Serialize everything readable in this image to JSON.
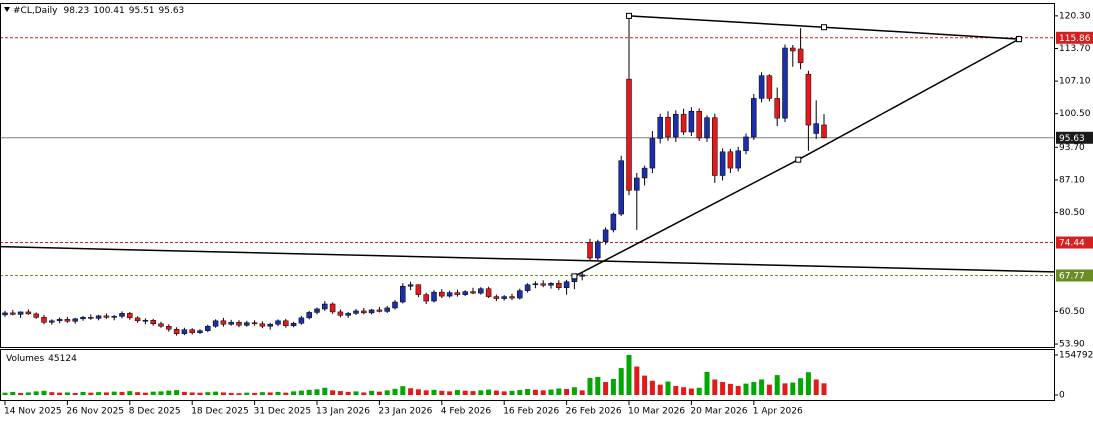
{
  "header": {
    "symbol": "#CL,Daily",
    "open": 98.23,
    "high": 100.41,
    "low": 95.51,
    "close": 95.63
  },
  "chart_data": {
    "type": "candlestick",
    "categories": [
      "14 Nov 2025",
      null,
      null,
      null,
      null,
      null,
      null,
      null,
      "26 Nov 2025",
      null,
      null,
      null,
      null,
      null,
      null,
      null,
      "8 Dec 2025",
      null,
      null,
      null,
      null,
      null,
      null,
      null,
      "18 Dec 2025",
      null,
      null,
      null,
      null,
      null,
      null,
      null,
      "31 Dec 2025",
      null,
      null,
      null,
      null,
      null,
      null,
      null,
      "13 Jan 2026",
      null,
      null,
      null,
      null,
      null,
      null,
      null,
      "23 Jan 2026",
      null,
      null,
      null,
      null,
      null,
      null,
      null,
      "4 Feb 2026",
      null,
      null,
      null,
      null,
      null,
      null,
      null,
      "16 Feb 2026",
      null,
      null,
      null,
      null,
      null,
      null,
      null,
      "26 Feb 2026",
      null,
      null,
      null,
      null,
      null,
      null,
      null,
      "10 Mar 2026",
      null,
      null,
      null,
      null,
      null,
      null,
      null,
      "20 Mar 2026",
      null,
      null,
      null,
      null,
      null,
      null,
      null,
      "1 Apr 2026",
      null,
      null,
      null,
      null,
      null,
      null,
      null,
      null,
      null
    ],
    "ohlc": [
      [
        59.8,
        60.6,
        59.4,
        60.2
      ],
      [
        60.2,
        60.8,
        59.7,
        59.9
      ],
      [
        59.9,
        60.5,
        59.2,
        60.4
      ],
      [
        60.4,
        60.9,
        59.8,
        60.0
      ],
      [
        60.0,
        60.3,
        59.0,
        59.3
      ],
      [
        59.3,
        59.8,
        57.9,
        58.3
      ],
      [
        58.3,
        58.9,
        57.8,
        58.6
      ],
      [
        58.6,
        59.3,
        58.1,
        58.9
      ],
      [
        58.9,
        59.4,
        58.2,
        58.5
      ],
      [
        58.5,
        59.2,
        58.0,
        59.0
      ],
      [
        59.0,
        59.6,
        58.6,
        59.3
      ],
      [
        59.3,
        59.9,
        58.8,
        59.1
      ],
      [
        59.1,
        59.8,
        58.7,
        59.6
      ],
      [
        59.6,
        60.1,
        59.0,
        59.3
      ],
      [
        59.3,
        59.8,
        58.7,
        59.5
      ],
      [
        59.5,
        60.5,
        59.1,
        60.1
      ],
      [
        60.1,
        60.4,
        58.8,
        59.2
      ],
      [
        59.2,
        59.5,
        58.2,
        58.6
      ],
      [
        58.6,
        59.1,
        57.9,
        58.7
      ],
      [
        58.7,
        59.0,
        57.6,
        58.0
      ],
      [
        58.0,
        58.4,
        57.2,
        57.5
      ],
      [
        57.5,
        57.9,
        56.4,
        56.9
      ],
      [
        56.9,
        57.3,
        55.6,
        56.0
      ],
      [
        56.0,
        57.2,
        55.7,
        56.8
      ],
      [
        56.8,
        57.1,
        55.8,
        56.2
      ],
      [
        56.2,
        56.9,
        55.9,
        56.6
      ],
      [
        56.6,
        57.8,
        56.3,
        57.5
      ],
      [
        57.5,
        58.9,
        57.2,
        58.6
      ],
      [
        58.6,
        59.2,
        57.4,
        57.9
      ],
      [
        57.9,
        58.8,
        57.6,
        58.3
      ],
      [
        58.3,
        58.7,
        57.3,
        57.7
      ],
      [
        57.7,
        58.6,
        57.4,
        58.2
      ],
      [
        58.2,
        58.7,
        57.6,
        58.0
      ],
      [
        58.0,
        58.5,
        57.1,
        57.5
      ],
      [
        57.5,
        58.2,
        56.8,
        57.9
      ],
      [
        57.9,
        58.9,
        57.5,
        58.6
      ],
      [
        58.6,
        59.0,
        57.2,
        57.6
      ],
      [
        57.6,
        58.4,
        57.3,
        58.1
      ],
      [
        58.1,
        59.6,
        57.8,
        59.2
      ],
      [
        59.2,
        60.6,
        58.9,
        60.3
      ],
      [
        60.3,
        61.3,
        59.9,
        61.0
      ],
      [
        61.0,
        62.6,
        60.6,
        62.0
      ],
      [
        62.0,
        62.3,
        60.0,
        60.4
      ],
      [
        60.4,
        60.9,
        59.3,
        59.7
      ],
      [
        59.7,
        60.4,
        59.2,
        60.1
      ],
      [
        60.1,
        61.0,
        59.8,
        60.6
      ],
      [
        60.6,
        61.2,
        59.9,
        60.2
      ],
      [
        60.2,
        61.0,
        59.9,
        60.8
      ],
      [
        60.8,
        61.4,
        60.3,
        60.5
      ],
      [
        60.5,
        61.6,
        60.2,
        61.2
      ],
      [
        61.2,
        62.8,
        60.9,
        62.4
      ],
      [
        62.4,
        66.2,
        62.1,
        65.6
      ],
      [
        65.6,
        66.5,
        64.8,
        65.9
      ],
      [
        65.9,
        66.0,
        63.4,
        63.9
      ],
      [
        63.9,
        64.3,
        62.0,
        62.6
      ],
      [
        62.6,
        64.8,
        62.3,
        64.4
      ],
      [
        64.4,
        65.0,
        63.2,
        63.6
      ],
      [
        63.6,
        64.7,
        63.3,
        64.3
      ],
      [
        64.3,
        64.9,
        63.5,
        63.9
      ],
      [
        63.9,
        64.8,
        63.6,
        64.5
      ],
      [
        64.5,
        65.3,
        64.0,
        64.2
      ],
      [
        64.2,
        65.4,
        63.9,
        65.1
      ],
      [
        65.1,
        65.5,
        63.2,
        63.5
      ],
      [
        63.5,
        63.9,
        62.6,
        63.1
      ],
      [
        63.1,
        63.8,
        62.7,
        63.5
      ],
      [
        63.5,
        64.1,
        62.8,
        63.2
      ],
      [
        63.2,
        65.1,
        62.9,
        64.7
      ],
      [
        64.7,
        66.2,
        64.3,
        65.9
      ],
      [
        65.9,
        66.6,
        65.2,
        66.1
      ],
      [
        66.1,
        66.8,
        65.4,
        65.8
      ],
      [
        65.8,
        66.4,
        65.1,
        66.2
      ],
      [
        66.2,
        66.8,
        64.8,
        65.3
      ],
      [
        65.3,
        66.9,
        63.9,
        66.5
      ],
      [
        66.5,
        67.7,
        65.0,
        67.6
      ],
      [
        67.6,
        68.4,
        66.8,
        67.9
      ],
      [
        74.5,
        75.2,
        70.8,
        71.3
      ],
      [
        71.3,
        75.0,
        70.9,
        74.6
      ],
      [
        74.6,
        77.5,
        74.0,
        77.0
      ],
      [
        77.0,
        80.5,
        76.5,
        80.2
      ],
      [
        80.2,
        92.0,
        79.8,
        91.0
      ],
      [
        107.5,
        120.3,
        84.0,
        85.0
      ],
      [
        85.0,
        88.5,
        77.0,
        87.5
      ],
      [
        87.5,
        90.0,
        86.0,
        89.5
      ],
      [
        89.5,
        97.0,
        88.5,
        95.5
      ],
      [
        95.5,
        100.5,
        94.5,
        99.8
      ],
      [
        99.8,
        101.0,
        95.0,
        95.8
      ],
      [
        95.8,
        101.2,
        94.8,
        100.4
      ],
      [
        100.4,
        101.5,
        96.2,
        96.8
      ],
      [
        96.8,
        101.8,
        96.0,
        101.0
      ],
      [
        101.0,
        101.6,
        95.0,
        95.6
      ],
      [
        95.6,
        100.2,
        94.8,
        99.7
      ],
      [
        99.7,
        100.5,
        86.5,
        88.0
      ],
      [
        88.0,
        93.5,
        87.0,
        92.8
      ],
      [
        92.8,
        93.4,
        88.5,
        89.5
      ],
      [
        89.5,
        93.8,
        88.8,
        93.0
      ],
      [
        93.0,
        96.5,
        92.3,
        95.8
      ],
      [
        95.8,
        104.5,
        95.2,
        103.6
      ],
      [
        103.6,
        108.9,
        102.8,
        108.2
      ],
      [
        108.2,
        108.5,
        103.0,
        103.6
      ],
      [
        103.6,
        105.8,
        98.0,
        99.6
      ],
      [
        99.6,
        114.5,
        98.8,
        113.8
      ],
      [
        113.8,
        114.4,
        110.0,
        113.2
      ],
      [
        113.6,
        117.8,
        109.5,
        110.8
      ],
      [
        108.5,
        109.2,
        93.0,
        98.2
      ],
      [
        96.5,
        103.2,
        95.4,
        98.5
      ],
      [
        98.23,
        100.41,
        95.51,
        95.63
      ]
    ],
    "up_color": "#1c2ea8",
    "down_color": "#e31a1c",
    "ylim": [
      53.3,
      122.7
    ],
    "yticks": [
      {
        "value": 120.3,
        "label": "120.30"
      },
      {
        "value": 113.7,
        "label": "113.70"
      },
      {
        "value": 107.1,
        "label": "107.10"
      },
      {
        "value": 100.5,
        "label": "100.50"
      },
      {
        "value": 93.7,
        "label": "93.70"
      },
      {
        "value": 87.1,
        "label": "87.10"
      },
      {
        "value": 80.5,
        "label": "80.50"
      },
      {
        "value": 60.5,
        "label": "60.50"
      },
      {
        "value": 53.9,
        "label": "53.90"
      }
    ],
    "levels": [
      {
        "value": 115.86,
        "color": "#d42020",
        "style": "dashed"
      },
      {
        "value": 95.63,
        "color": "#808080",
        "style": "solid"
      },
      {
        "value": 74.44,
        "color": "#d42020",
        "style": "dashed"
      },
      {
        "value": 67.77,
        "color": "#6b8e23",
        "style": "dashed"
      }
    ],
    "trendlines": [
      {
        "points": [
          [
            80,
            120.3
          ],
          [
            105,
            118.0
          ],
          [
            130,
            115.6
          ]
        ]
      },
      {
        "points": [
          [
            73,
            67.6
          ],
          [
            101.7,
            91.2
          ],
          [
            130,
            115.6
          ]
        ]
      },
      {
        "points": [
          [
            -0.6,
            73.6
          ],
          [
            134.6,
            68.5
          ]
        ]
      }
    ],
    "volume": {
      "title": "Volumes",
      "up_color": "#00a800",
      "down_color": "#e31a1c",
      "ylim": [
        0,
        170000
      ],
      "yticks": [
        0,
        154792
      ],
      "values": [
        9000,
        12000,
        8000,
        10000,
        14000,
        16000,
        11000,
        9000,
        10000,
        8000,
        12000,
        9000,
        11000,
        10000,
        13000,
        12000,
        15000,
        11000,
        9000,
        13000,
        14000,
        17000,
        19000,
        12000,
        10000,
        9000,
        11000,
        13000,
        10000,
        8000,
        7000,
        9000,
        8000,
        11000,
        10000,
        12000,
        9000,
        14000,
        17000,
        20000,
        22000,
        28000,
        18000,
        15000,
        12000,
        14000,
        10000,
        16000,
        13000,
        18000,
        24000,
        34000,
        26000,
        22000,
        18000,
        20000,
        16000,
        14000,
        19000,
        17000,
        15000,
        18000,
        21000,
        17000,
        14000,
        16000,
        19000,
        23000,
        20000,
        18000,
        21000,
        25000,
        23000,
        30000,
        18000,
        66000,
        70000,
        50000,
        62000,
        104000,
        154792,
        110000,
        75000,
        55000,
        40000,
        52000,
        35000,
        30000,
        25000,
        28000,
        89000,
        60000,
        50000,
        43000,
        35000,
        44000,
        50000,
        60000,
        40000,
        77000,
        45000,
        48000,
        65000,
        88000,
        60000,
        45124
      ]
    }
  }
}
